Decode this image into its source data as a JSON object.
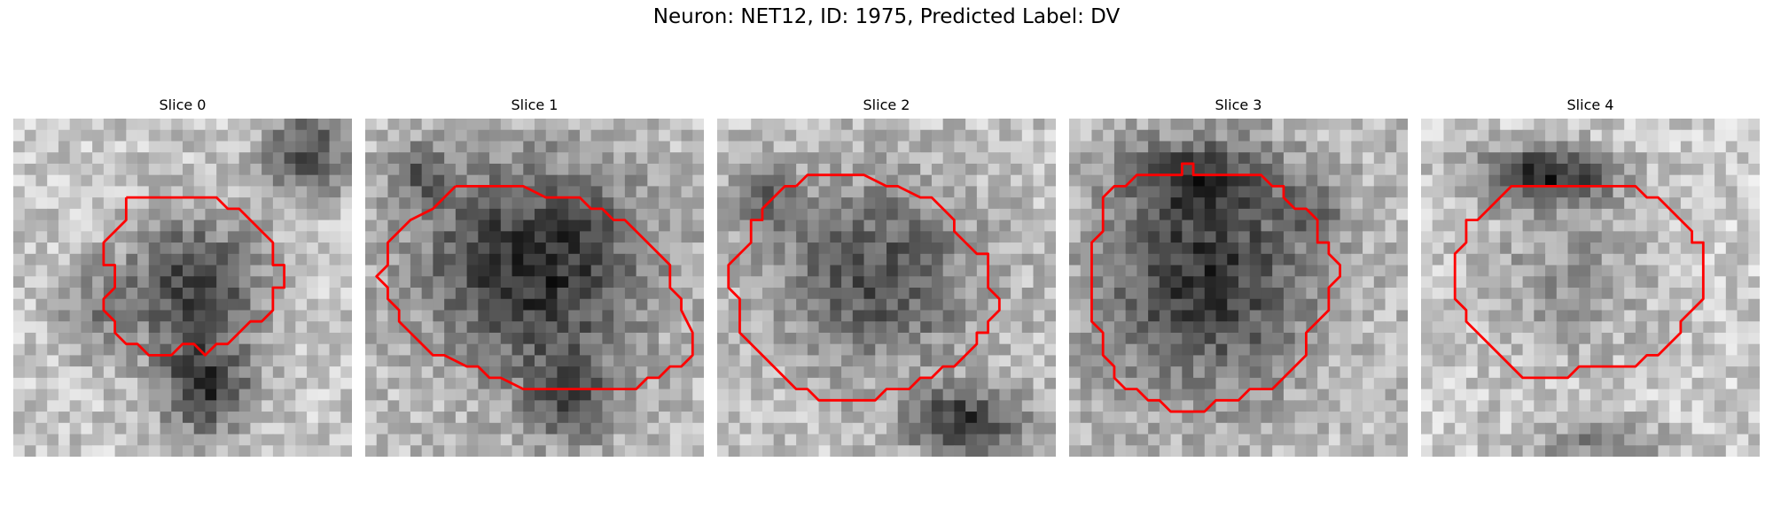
{
  "figure": {
    "title": "Neuron: NET12, ID: 1975, Predicted Label: DV"
  },
  "colors": {
    "contour": "#ff0000",
    "colormap": "gray"
  },
  "panels": [
    {
      "title": "Slice 0",
      "image": {
        "description": "grayscale electron micrograph patch, 30x30 pixels, dark rounded cell body near center with dark process extending down"
      },
      "contour": [
        [
          10,
          7
        ],
        [
          12,
          7
        ],
        [
          18,
          7
        ],
        [
          19,
          8
        ],
        [
          20,
          8
        ],
        [
          22,
          10
        ],
        [
          23,
          11
        ],
        [
          23,
          13
        ],
        [
          24,
          13
        ],
        [
          24,
          15
        ],
        [
          23,
          15
        ],
        [
          23,
          17
        ],
        [
          22,
          18
        ],
        [
          21,
          18
        ],
        [
          19,
          20
        ],
        [
          18,
          20
        ],
        [
          17,
          21
        ],
        [
          16,
          20
        ],
        [
          15,
          20
        ],
        [
          14,
          21
        ],
        [
          12,
          21
        ],
        [
          11,
          20
        ],
        [
          10,
          20
        ],
        [
          9,
          19
        ],
        [
          9,
          18
        ],
        [
          8,
          17
        ],
        [
          8,
          16
        ],
        [
          9,
          15
        ],
        [
          9,
          13
        ],
        [
          8,
          13
        ],
        [
          8,
          11
        ],
        [
          9,
          10
        ],
        [
          10,
          9
        ],
        [
          10,
          8
        ],
        [
          10,
          7
        ]
      ]
    },
    {
      "title": "Slice 1",
      "image": {
        "description": "grayscale electron micrograph patch, large dark cell body filling center"
      },
      "contour": [
        [
          8,
          6
        ],
        [
          10,
          6
        ],
        [
          14,
          6
        ],
        [
          16,
          7
        ],
        [
          19,
          7
        ],
        [
          20,
          8
        ],
        [
          21,
          8
        ],
        [
          22,
          9
        ],
        [
          23,
          9
        ],
        [
          26,
          12
        ],
        [
          27,
          13
        ],
        [
          27,
          15
        ],
        [
          28,
          16
        ],
        [
          28,
          17
        ],
        [
          29,
          19
        ],
        [
          29,
          21
        ],
        [
          28,
          22
        ],
        [
          27,
          22
        ],
        [
          26,
          23
        ],
        [
          25,
          23
        ],
        [
          24,
          24
        ],
        [
          22,
          24
        ],
        [
          20,
          24
        ],
        [
          14,
          24
        ],
        [
          12,
          23
        ],
        [
          11,
          23
        ],
        [
          10,
          22
        ],
        [
          9,
          22
        ],
        [
          7,
          21
        ],
        [
          6,
          21
        ],
        [
          5,
          20
        ],
        [
          4,
          19
        ],
        [
          3,
          18
        ],
        [
          3,
          17
        ],
        [
          2,
          16
        ],
        [
          2,
          15
        ],
        [
          1,
          14
        ],
        [
          2,
          13
        ],
        [
          2,
          11
        ],
        [
          3,
          10
        ],
        [
          4,
          9
        ],
        [
          6,
          8
        ],
        [
          7,
          7
        ],
        [
          8,
          6
        ]
      ]
    },
    {
      "title": "Slice 2",
      "image": {
        "description": "grayscale electron micrograph patch, medium gray cell body with dark process at lower right"
      },
      "contour": [
        [
          7,
          6
        ],
        [
          8,
          5
        ],
        [
          13,
          5
        ],
        [
          15,
          6
        ],
        [
          16,
          6
        ],
        [
          18,
          7
        ],
        [
          19,
          7
        ],
        [
          20,
          8
        ],
        [
          21,
          9
        ],
        [
          21,
          10
        ],
        [
          22,
          11
        ],
        [
          23,
          12
        ],
        [
          24,
          12
        ],
        [
          24,
          15
        ],
        [
          25,
          16
        ],
        [
          25,
          17
        ],
        [
          24,
          18
        ],
        [
          24,
          19
        ],
        [
          23,
          19
        ],
        [
          23,
          20
        ],
        [
          22,
          21
        ],
        [
          21,
          22
        ],
        [
          20,
          22
        ],
        [
          19,
          23
        ],
        [
          18,
          23
        ],
        [
          17,
          24
        ],
        [
          15,
          24
        ],
        [
          14,
          25
        ],
        [
          9,
          25
        ],
        [
          8,
          24
        ],
        [
          7,
          24
        ],
        [
          6,
          23
        ],
        [
          5,
          22
        ],
        [
          3,
          20
        ],
        [
          2,
          19
        ],
        [
          2,
          16
        ],
        [
          1,
          15
        ],
        [
          1,
          13
        ],
        [
          2,
          12
        ],
        [
          3,
          11
        ],
        [
          3,
          9
        ],
        [
          4,
          9
        ],
        [
          4,
          8
        ],
        [
          5,
          7
        ],
        [
          6,
          6
        ],
        [
          7,
          6
        ]
      ]
    },
    {
      "title": "Slice 3",
      "image": {
        "description": "grayscale electron micrograph patch, dark cell body in center"
      },
      "contour": [
        [
          3,
          8
        ],
        [
          3,
          7
        ],
        [
          4,
          6
        ],
        [
          5,
          6
        ],
        [
          6,
          5
        ],
        [
          9,
          5
        ],
        [
          10,
          5
        ],
        [
          10,
          4
        ],
        [
          11,
          4
        ],
        [
          11,
          5
        ],
        [
          14,
          5
        ],
        [
          17,
          5
        ],
        [
          18,
          6
        ],
        [
          19,
          6
        ],
        [
          19,
          7
        ],
        [
          20,
          8
        ],
        [
          21,
          8
        ],
        [
          22,
          9
        ],
        [
          22,
          11
        ],
        [
          23,
          11
        ],
        [
          23,
          12
        ],
        [
          24,
          13
        ],
        [
          24,
          14
        ],
        [
          23,
          15
        ],
        [
          23,
          17
        ],
        [
          22,
          18
        ],
        [
          21,
          19
        ],
        [
          21,
          21
        ],
        [
          20,
          22
        ],
        [
          19,
          23
        ],
        [
          18,
          24
        ],
        [
          16,
          24
        ],
        [
          15,
          25
        ],
        [
          14,
          25
        ],
        [
          13,
          25
        ],
        [
          12,
          26
        ],
        [
          9,
          26
        ],
        [
          8,
          25
        ],
        [
          7,
          25
        ],
        [
          6,
          24
        ],
        [
          5,
          24
        ],
        [
          4,
          23
        ],
        [
          4,
          22
        ],
        [
          3,
          21
        ],
        [
          3,
          19
        ],
        [
          2,
          18
        ],
        [
          2,
          17
        ],
        [
          2,
          14
        ],
        [
          2,
          11
        ],
        [
          3,
          10
        ],
        [
          3,
          8
        ]
      ]
    },
    {
      "title": "Slice 4",
      "image": {
        "description": "grayscale electron micrograph patch, lighter region with dark band at top"
      },
      "contour": [
        [
          7,
          7
        ],
        [
          8,
          6
        ],
        [
          19,
          6
        ],
        [
          20,
          7
        ],
        [
          21,
          7
        ],
        [
          22,
          8
        ],
        [
          23,
          9
        ],
        [
          24,
          10
        ],
        [
          24,
          11
        ],
        [
          25,
          11
        ],
        [
          25,
          12
        ],
        [
          25,
          13
        ],
        [
          25,
          16
        ],
        [
          24,
          17
        ],
        [
          23,
          18
        ],
        [
          23,
          19
        ],
        [
          22,
          20
        ],
        [
          21,
          21
        ],
        [
          20,
          21
        ],
        [
          19,
          22
        ],
        [
          18,
          22
        ],
        [
          17,
          22
        ],
        [
          16,
          22
        ],
        [
          14,
          22
        ],
        [
          13,
          23
        ],
        [
          12,
          23
        ],
        [
          10,
          23
        ],
        [
          9,
          23
        ],
        [
          8,
          22
        ],
        [
          7,
          21
        ],
        [
          6,
          20
        ],
        [
          5,
          19
        ],
        [
          4,
          18
        ],
        [
          4,
          17
        ],
        [
          3,
          16
        ],
        [
          3,
          14
        ],
        [
          3,
          13
        ],
        [
          3,
          12
        ],
        [
          4,
          11
        ],
        [
          4,
          9
        ],
        [
          5,
          9
        ],
        [
          6,
          8
        ],
        [
          7,
          7
        ]
      ]
    }
  ]
}
